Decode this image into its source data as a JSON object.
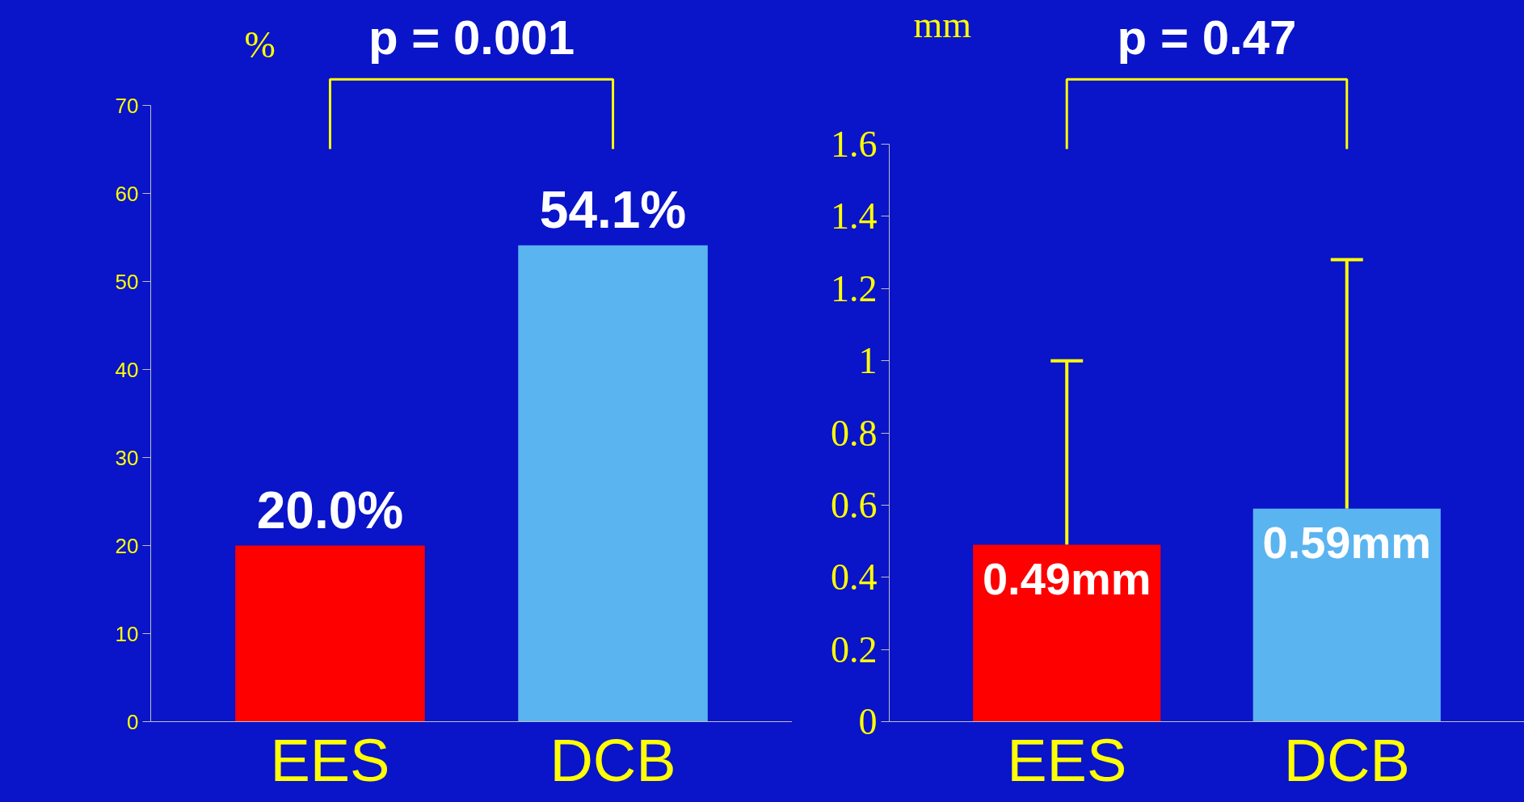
{
  "chart_data": [
    {
      "type": "bar",
      "categories": [
        "EES",
        "DCB"
      ],
      "values": [
        20.0,
        54.1
      ],
      "colors": [
        "#ff0000",
        "#5ab4f0"
      ],
      "ylabel": "%",
      "ylim": [
        0,
        70
      ],
      "yticks": [
        0,
        10,
        20,
        30,
        40,
        50,
        60,
        70
      ],
      "value_labels": [
        "20.0%",
        "54.1%"
      ],
      "annotations": [
        "p = 0.001"
      ]
    },
    {
      "type": "bar",
      "categories": [
        "EES",
        "DCB"
      ],
      "values": [
        0.49,
        0.59
      ],
      "colors": [
        "#ff0000",
        "#5ab4f0"
      ],
      "ylabel": "mm",
      "ylim": [
        0,
        1.6
      ],
      "yticks": [
        0,
        0.2,
        0.4,
        0.6,
        0.8,
        1,
        1.2,
        1.4,
        1.6
      ],
      "value_labels": [
        "0.49mm",
        "0.59mm"
      ],
      "errors": [
        [
          0.49,
          1.0
        ],
        [
          0.59,
          1.28
        ]
      ],
      "annotations": [
        "p = 0.47"
      ]
    }
  ]
}
